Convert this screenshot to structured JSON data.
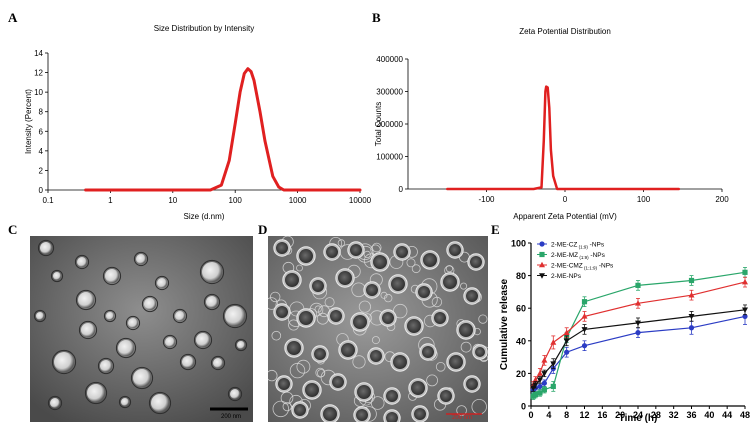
{
  "panels": {
    "A": "A",
    "B": "B",
    "C": "C",
    "D": "D",
    "E": "E"
  },
  "micrographs": {
    "C": {
      "scale_label": "200 nm"
    },
    "D": {
      "scale_label": "200 nm"
    }
  },
  "chart_data": [
    {
      "panel": "A",
      "type": "line",
      "title": "Size Distribution by Intensity",
      "xlabel": "Size (d.nm)",
      "ylabel": "Intensity (Percent)",
      "xscale": "log",
      "xlim": [
        0.1,
        10000
      ],
      "ylim": [
        0,
        14
      ],
      "xticks": [
        0.1,
        1,
        10,
        100,
        1000,
        10000
      ],
      "xtick_labels": [
        "0.1",
        "1",
        "10",
        "100",
        "1000",
        "10000"
      ],
      "yticks": [
        0,
        2,
        4,
        6,
        8,
        10,
        12,
        14
      ],
      "series": [
        {
          "name": "Size distribution",
          "color": "#e02020",
          "x": [
            0.4,
            1,
            10,
            40,
            60,
            80,
            100,
            120,
            140,
            160,
            180,
            200,
            250,
            300,
            400,
            500,
            600,
            1000,
            10000
          ],
          "y": [
            0,
            0,
            0,
            0,
            0.5,
            3.0,
            6.8,
            10.0,
            11.9,
            12.4,
            12.1,
            11.2,
            8.0,
            5.0,
            1.4,
            0.3,
            0,
            0,
            0
          ]
        }
      ]
    },
    {
      "panel": "B",
      "type": "line",
      "title": "Zeta Potential Distribution",
      "xlabel": "Apparent Zeta Potential (mV)",
      "ylabel": "Total Counts",
      "xlim": [
        -200,
        200
      ],
      "ylim": [
        0,
        400000
      ],
      "xticks": [
        -100,
        0,
        100,
        200
      ],
      "yticks": [
        0,
        100000,
        200000,
        300000,
        400000
      ],
      "series": [
        {
          "name": "Zeta potential",
          "color": "#e02020",
          "x": [
            -150,
            -40,
            -30,
            -27,
            -25,
            -24,
            -22,
            -20,
            -18,
            -15,
            -10,
            145
          ],
          "y": [
            0,
            0,
            5000,
            150000,
            300000,
            315000,
            312000,
            250000,
            120000,
            40000,
            0,
            0
          ]
        }
      ]
    },
    {
      "panel": "E",
      "type": "line",
      "xlabel": "Time (h)",
      "ylabel": "Cumulative release",
      "xlim": [
        0,
        48
      ],
      "ylim": [
        0,
        100
      ],
      "xticks": [
        0,
        4,
        8,
        12,
        16,
        20,
        24,
        28,
        32,
        36,
        40,
        44,
        48
      ],
      "yticks": [
        0,
        20,
        40,
        60,
        80,
        100
      ],
      "legend_position": "top-left",
      "x": [
        0.5,
        1,
        2,
        3,
        5,
        8,
        12,
        24,
        36,
        48
      ],
      "series": [
        {
          "name": "2-ME-CZ",
          "subscript": "(1:9)",
          "suffix": "-NPs",
          "color": "#2b3cc4",
          "marker": "circle",
          "values": [
            10,
            11,
            12,
            14,
            23,
            33,
            37,
            45,
            48,
            55
          ],
          "errors": [
            2,
            2,
            2,
            2,
            3,
            3,
            3,
            3,
            4,
            5
          ]
        },
        {
          "name": "2-ME-MZ",
          "subscript": "(1:9)",
          "suffix": "-NPs",
          "color": "#2aa66a",
          "marker": "square",
          "values": [
            6,
            7,
            8,
            10,
            12,
            42,
            64,
            74,
            77,
            82
          ],
          "errors": [
            2,
            2,
            2,
            2,
            3,
            3,
            3,
            3,
            3,
            3
          ]
        },
        {
          "name": "2-ME-CMZ",
          "subscript": "(1:1:9)",
          "suffix": "-NPs",
          "color": "#e03030",
          "marker": "triangle-up",
          "values": [
            13,
            16,
            20,
            28,
            39,
            45,
            55,
            63,
            68,
            76
          ],
          "errors": [
            2,
            2,
            3,
            3,
            4,
            3,
            3,
            3,
            3,
            3
          ]
        },
        {
          "name": "2-ME-NPs",
          "subscript": "",
          "suffix": "",
          "color": "#111111",
          "marker": "triangle-down",
          "values": [
            11,
            13,
            16,
            20,
            26,
            40,
            47,
            51,
            55,
            59
          ],
          "errors": [
            2,
            2,
            2,
            2,
            3,
            3,
            3,
            3,
            3,
            3
          ]
        }
      ]
    }
  ]
}
